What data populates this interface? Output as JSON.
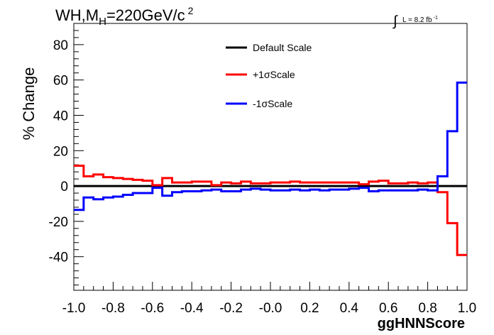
{
  "chart_data": {
    "type": "step-line",
    "title": "WH,M",
    "title_sub": "H",
    "title_rest": "=220GeV/c",
    "title_sup": "2",
    "lumi_label": "L = 8.2 fb",
    "lumi_sup": "-1",
    "xlabel": "ggHNNScore",
    "ylabel": "% Change",
    "xlim": [
      -1.0,
      1.0
    ],
    "ylim": [
      -59,
      92
    ],
    "x_ticks": [
      "-1.0",
      "-0.8",
      "-0.6",
      "-0.4",
      "-0.2",
      "-0.0",
      "0.2",
      "0.4",
      "0.6",
      "0.8",
      "1.0"
    ],
    "y_ticks": [
      "-40",
      "-20",
      "0",
      "20",
      "40",
      "60",
      "80"
    ],
    "legend_position": "top-center",
    "bin_edges": [
      -1.0,
      -0.95,
      -0.9,
      -0.85,
      -0.8,
      -0.75,
      -0.7,
      -0.65,
      -0.6,
      -0.55,
      -0.5,
      -0.45,
      -0.4,
      -0.35,
      -0.3,
      -0.25,
      -0.2,
      -0.15,
      -0.1,
      -0.05,
      0.0,
      0.05,
      0.1,
      0.15,
      0.2,
      0.25,
      0.3,
      0.35,
      0.4,
      0.45,
      0.5,
      0.55,
      0.6,
      0.65,
      0.7,
      0.75,
      0.8,
      0.85,
      0.9,
      0.95,
      1.0
    ],
    "series": [
      {
        "name": "Default Scale",
        "color": "#000000",
        "values": [
          0,
          0,
          0,
          0,
          0,
          0,
          0,
          0,
          0,
          0,
          0,
          0,
          0,
          0,
          0,
          0,
          0,
          0,
          0,
          0,
          0,
          0,
          0,
          0,
          0,
          0,
          0,
          0,
          0,
          0,
          0,
          0,
          0,
          0,
          0,
          0,
          0,
          0,
          0,
          0
        ]
      },
      {
        "name": "+1σScale",
        "color": "#ff0000",
        "values": [
          11.5,
          5.5,
          6.5,
          5.0,
          4.5,
          4.0,
          3.5,
          3.0,
          0.5,
          4.5,
          2.0,
          2.0,
          2.5,
          2.5,
          0.5,
          2.0,
          1.5,
          2.5,
          1.5,
          1.5,
          2.0,
          2.0,
          2.5,
          2.0,
          2.0,
          2.0,
          2.0,
          2.0,
          2.0,
          1.0,
          2.5,
          3.0,
          1.5,
          1.5,
          2.0,
          1.5,
          2.0,
          -3.5,
          -21.0,
          -39.0
        ]
      },
      {
        "name": "-1σScale",
        "color": "#0000ff",
        "values": [
          -13.5,
          -6.5,
          -7.5,
          -6.5,
          -6.0,
          -5.0,
          -4.0,
          -4.0,
          -1.0,
          -5.5,
          -3.5,
          -3.0,
          -3.0,
          -2.5,
          -2.0,
          -3.0,
          -3.0,
          -2.0,
          -1.5,
          -2.0,
          -2.5,
          -2.5,
          -2.0,
          -2.5,
          -2.0,
          -2.5,
          -2.0,
          -2.0,
          -1.5,
          -1.0,
          -3.0,
          -2.5,
          -2.5,
          -2.5,
          -2.5,
          -2.0,
          -2.5,
          5.5,
          31.0,
          58.5
        ]
      }
    ]
  }
}
